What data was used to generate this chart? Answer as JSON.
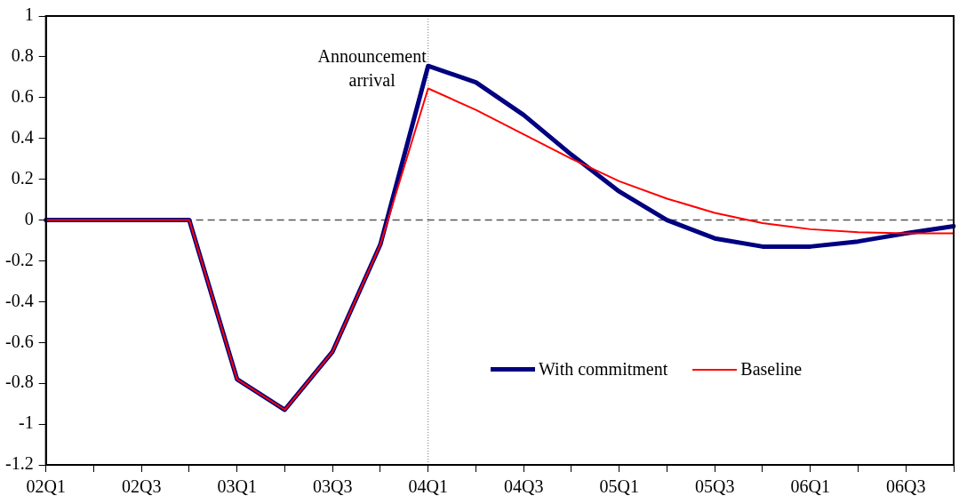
{
  "chart_data": {
    "type": "line",
    "categories": [
      "02Q1",
      null,
      "02Q3",
      null,
      "03Q1",
      null,
      "03Q3",
      null,
      "04Q1",
      null,
      "04Q3",
      null,
      "05Q1",
      null,
      "05Q3",
      null,
      "06Q1",
      null,
      "06Q3",
      null
    ],
    "series": [
      {
        "name": "With commitment",
        "color": "#000080",
        "values": [
          0,
          0,
          0,
          0,
          -0.78,
          -0.93,
          -0.645,
          -0.12,
          0.755,
          0.675,
          0.515,
          0.32,
          0.14,
          0,
          -0.09,
          -0.13,
          -0.13,
          -0.105,
          -0.065,
          -0.03
        ]
      },
      {
        "name": "Baseline",
        "color": "#ff0000",
        "values": [
          0,
          0,
          0,
          0,
          -0.78,
          -0.93,
          -0.645,
          -0.12,
          0.645,
          0.54,
          0.42,
          0.3,
          0.19,
          0.105,
          0.035,
          -0.015,
          -0.045,
          -0.06,
          -0.065,
          -0.065
        ]
      }
    ],
    "ylim": [
      -1.2,
      1
    ],
    "yticks": [
      -1.2,
      -1,
      -0.8,
      -0.6,
      -0.4,
      -0.2,
      0,
      0.2,
      0.4,
      0.6,
      0.8,
      1
    ],
    "ref_lines": [
      {
        "axis": "y",
        "value": 0,
        "color": "#555555",
        "line_style": "dashed"
      },
      {
        "axis": "x",
        "value": "04Q1",
        "label": "Announcement arrival",
        "color": "#777777",
        "line_style": "dotted"
      }
    ],
    "grid": false,
    "legend": "bottom right",
    "marker": "none",
    "line_style": "solid"
  }
}
